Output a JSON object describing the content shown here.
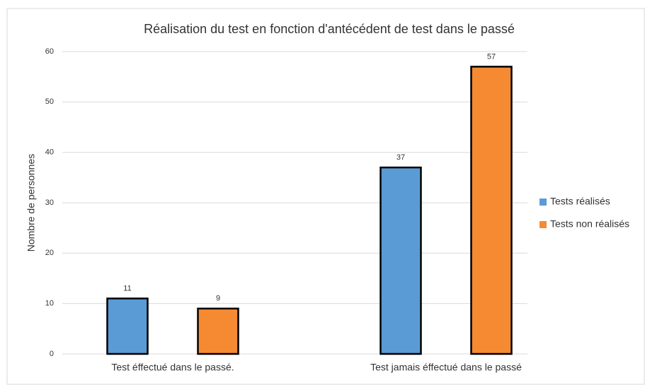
{
  "chart_data": {
    "type": "bar",
    "title": "Réalisation du test en fonction d'antécédent de test dans le passé",
    "y_label": "Nombre de personnes",
    "categories": [
      "Test éffectué dans le passé.",
      "Test jamais éffectué dans le passé"
    ],
    "series": [
      {
        "name": "Tests réalisés",
        "color": "#5b9bd5",
        "values": [
          11,
          37
        ]
      },
      {
        "name": "Tests non réalisés",
        "color": "#f58a33",
        "values": [
          9,
          57
        ]
      }
    ],
    "ylim": [
      0,
      60
    ],
    "yticks": [
      0,
      10,
      20,
      30,
      40,
      50,
      60
    ],
    "grid": true,
    "legend": "right"
  }
}
